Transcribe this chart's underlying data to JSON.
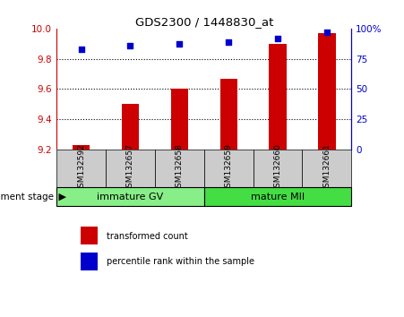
{
  "title": "GDS2300 / 1448830_at",
  "samples": [
    "GSM132592",
    "GSM132657",
    "GSM132658",
    "GSM132659",
    "GSM132660",
    "GSM132661"
  ],
  "bar_values": [
    9.23,
    9.5,
    9.6,
    9.67,
    9.9,
    9.97
  ],
  "bar_bottom": 9.2,
  "percentile_ranks": [
    83,
    86,
    87,
    89,
    92,
    97
  ],
  "ylim": [
    9.2,
    10.0
  ],
  "ylim2": [
    0,
    100
  ],
  "yticks_left": [
    9.2,
    9.4,
    9.6,
    9.8,
    10.0
  ],
  "yticks_right": [
    0,
    25,
    50,
    75,
    100
  ],
  "bar_color": "#cc0000",
  "percentile_color": "#0000cc",
  "group1_label": "immature GV",
  "group2_label": "mature MII",
  "group1_color": "#88ee88",
  "group2_color": "#44dd44",
  "group_bg_color": "#cccccc",
  "legend_bar_label": "transformed count",
  "legend_pct_label": "percentile rank within the sample",
  "dev_stage_label": "development stage",
  "figsize": [
    4.51,
    3.54
  ],
  "dpi": 100
}
